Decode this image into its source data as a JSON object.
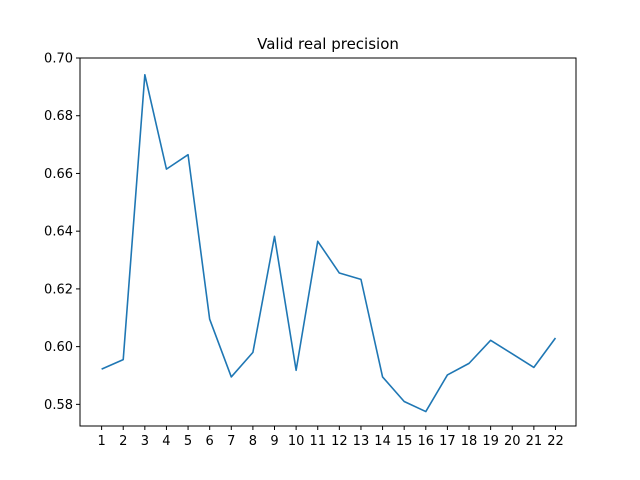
{
  "chart_data": {
    "type": "line",
    "title": "Valid real precision",
    "xlabel": "",
    "ylabel": "",
    "x": [
      1,
      2,
      3,
      4,
      5,
      6,
      7,
      8,
      9,
      10,
      11,
      12,
      13,
      14,
      15,
      16,
      17,
      18,
      19,
      20,
      21,
      22
    ],
    "xticks": [
      "1",
      "2",
      "3",
      "4",
      "5",
      "6",
      "7",
      "8",
      "9",
      "10",
      "11",
      "12",
      "13",
      "14",
      "15",
      "16",
      "17",
      "18",
      "19",
      "20",
      "21",
      "22"
    ],
    "series": [
      {
        "values": [
          0.5922,
          0.5955,
          0.6942,
          0.6615,
          0.6665,
          0.6095,
          0.5895,
          0.598,
          0.6382,
          0.5918,
          0.6365,
          0.6255,
          0.6233,
          0.5895,
          0.581,
          0.5775,
          0.5902,
          0.5942,
          0.6022,
          0.5975,
          0.5928,
          0.603
        ],
        "color": "#1f77b4"
      }
    ],
    "xlim": [
      0.0,
      22.95
    ],
    "ylim": [
      0.5725,
      0.7
    ],
    "yticks": [
      "0.58",
      "0.60",
      "0.62",
      "0.64",
      "0.66",
      "0.68",
      "0.70"
    ],
    "ytick_values": [
      0.58,
      0.6,
      0.62,
      0.64,
      0.66,
      0.68,
      0.7
    ],
    "grid": false,
    "legend": "none"
  }
}
